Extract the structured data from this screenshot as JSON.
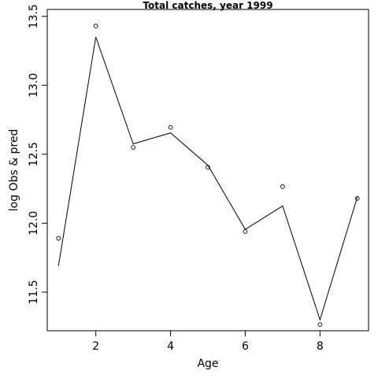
{
  "chart_data": {
    "type": "line",
    "title": "Total catches, year 1999",
    "xlabel": "Age",
    "ylabel": "log Obs & pred",
    "xlim": [
      0.7,
      9.3
    ],
    "ylim": [
      11.22,
      13.55
    ],
    "xticks": [
      2,
      4,
      6,
      8
    ],
    "yticks": [
      11.5,
      12.0,
      12.5,
      13.0,
      13.5
    ],
    "ytick_labels": [
      "11.5",
      "12.0",
      "12.5",
      "13.0",
      "13.5"
    ],
    "grid": false,
    "x": [
      1,
      2,
      3,
      4,
      5,
      6,
      7,
      8,
      9
    ],
    "series": [
      {
        "style": "line",
        "values": [
          11.69,
          13.35,
          12.575,
          12.655,
          12.42,
          11.955,
          12.125,
          11.3,
          12.19
        ]
      },
      {
        "style": "points",
        "values": [
          11.89,
          13.43,
          12.55,
          12.695,
          12.405,
          11.94,
          12.265,
          11.265,
          12.18
        ]
      }
    ]
  }
}
